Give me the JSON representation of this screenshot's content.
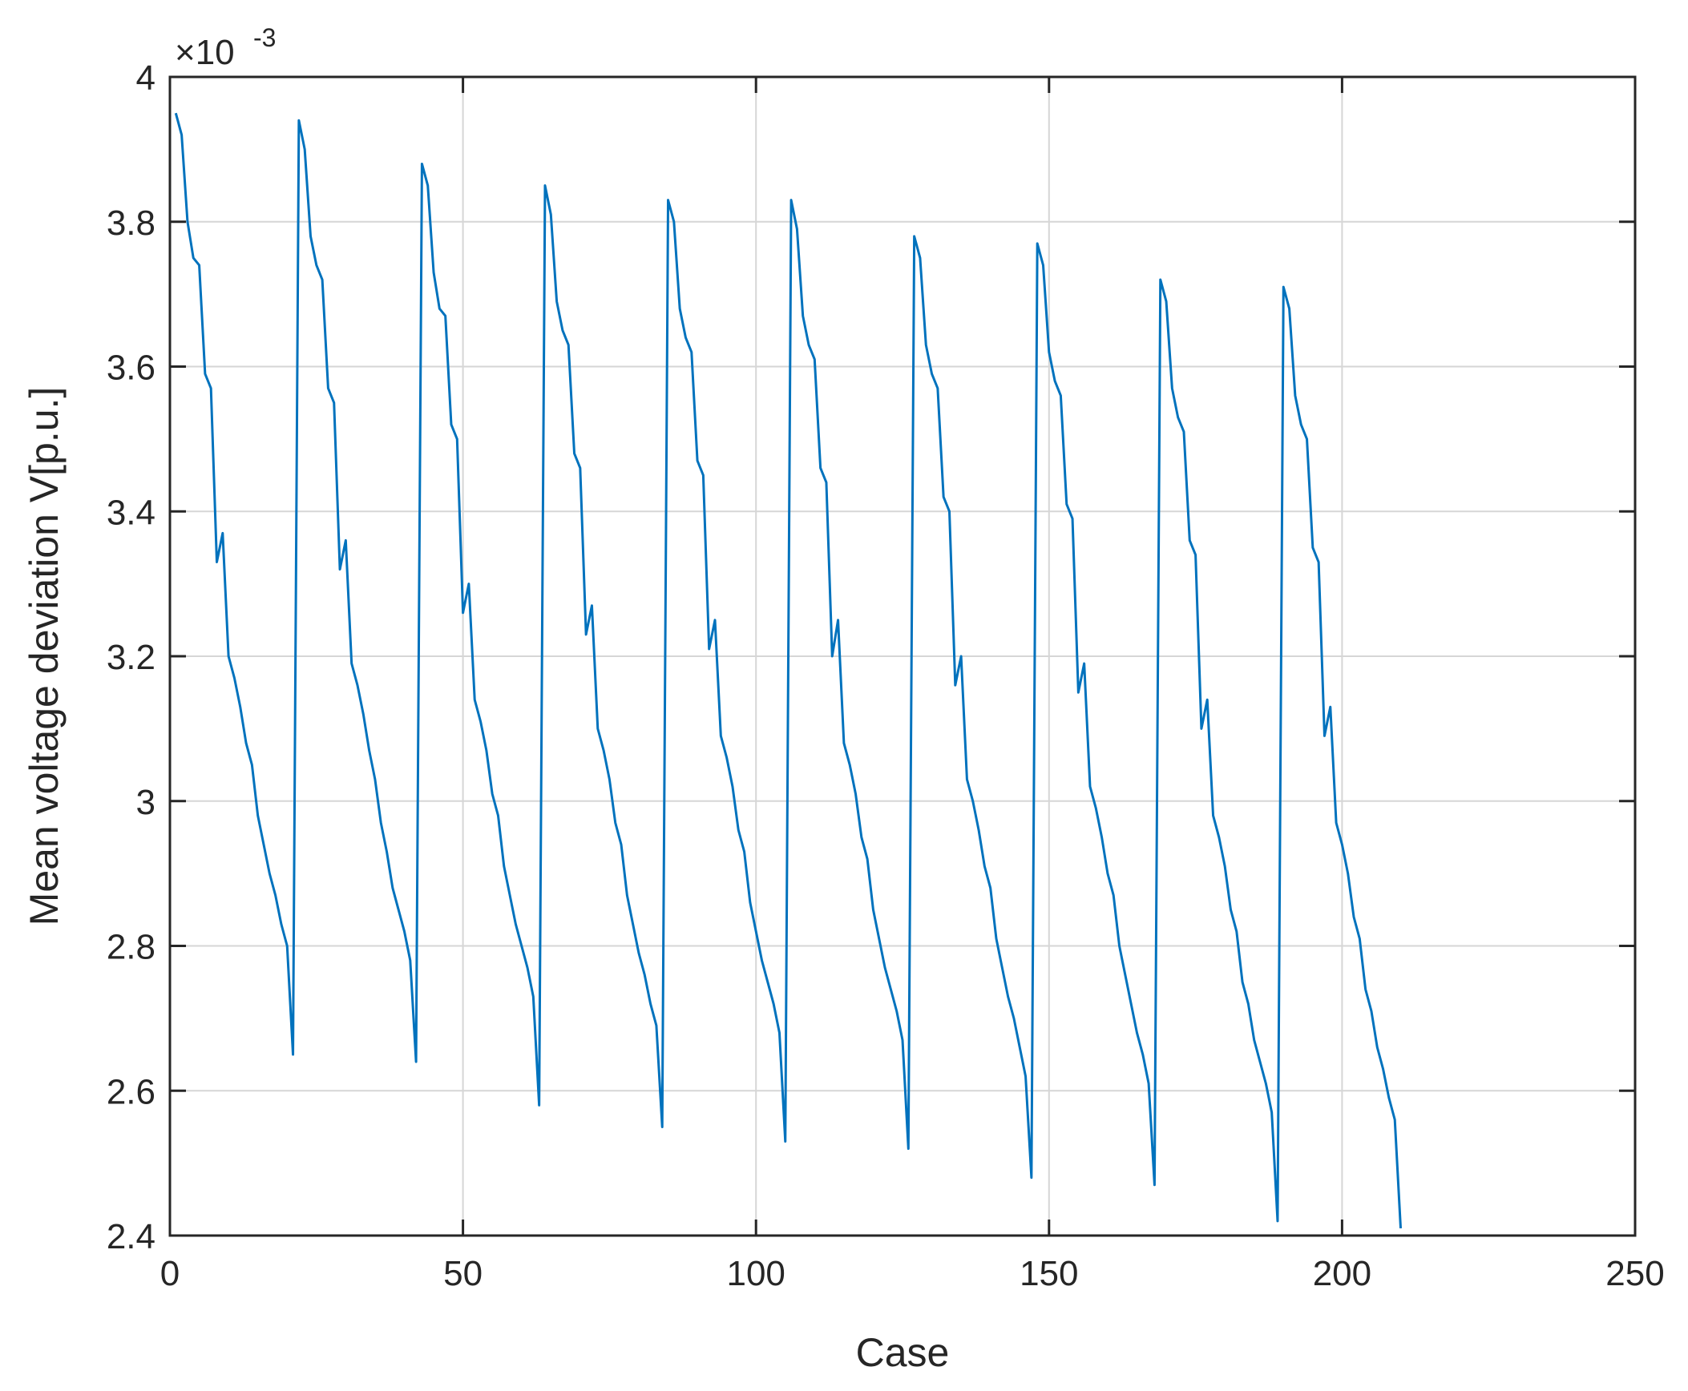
{
  "chart_data": {
    "type": "line",
    "xlabel": "Case",
    "ylabel": "Mean voltage deviation V[p.u.]",
    "y_exponent_base": "×10",
    "y_exponent_power": "-3",
    "xlim": [
      0,
      250
    ],
    "ylim": [
      2.4,
      4.0
    ],
    "xticks": [
      0,
      50,
      100,
      150,
      200,
      250
    ],
    "xtick_labels": [
      "0",
      "50",
      "100",
      "150",
      "200",
      "250"
    ],
    "yticks": [
      2.4,
      2.6,
      2.8,
      3.0,
      3.2,
      3.4,
      3.6,
      3.8,
      4.0
    ],
    "ytick_labels": [
      "2.4",
      "2.6",
      "2.8",
      "3",
      "3.2",
      "3.4",
      "3.6",
      "3.8",
      "4"
    ],
    "grid": true,
    "line_color": "#0072BD",
    "series": [
      {
        "x": [
          1,
          2,
          3,
          4,
          5,
          6,
          7,
          8,
          9,
          10,
          11,
          12,
          13,
          14,
          15,
          16,
          17,
          18,
          19,
          20,
          21,
          22,
          23,
          24,
          25,
          26,
          27,
          28,
          29,
          30,
          31,
          32,
          33,
          34,
          35,
          36,
          37,
          38,
          39,
          40,
          41,
          42,
          43,
          44,
          45,
          46,
          47,
          48,
          49,
          50,
          51,
          52,
          53,
          54,
          55,
          56,
          57,
          58,
          59,
          60,
          61,
          62,
          63,
          64,
          65,
          66,
          67,
          68,
          69,
          70,
          71,
          72,
          73,
          74,
          75,
          76,
          77,
          78,
          79,
          80,
          81,
          82,
          83,
          84,
          85,
          86,
          87,
          88,
          89,
          90,
          91,
          92,
          93,
          94,
          95,
          96,
          97,
          98,
          99,
          100,
          101,
          102,
          103,
          104,
          105,
          106,
          107,
          108,
          109,
          110,
          111,
          112,
          113,
          114,
          115,
          116,
          117,
          118,
          119,
          120,
          121,
          122,
          123,
          124,
          125,
          126,
          127,
          128,
          129,
          130,
          131,
          132,
          133,
          134,
          135,
          136,
          137,
          138,
          139,
          140,
          141,
          142,
          143,
          144,
          145,
          146,
          147,
          148,
          149,
          150,
          151,
          152,
          153,
          154,
          155,
          156,
          157,
          158,
          159,
          160,
          161,
          162,
          163,
          164,
          165,
          166,
          167,
          168,
          169,
          170,
          171,
          172,
          173,
          174,
          175,
          176,
          177,
          178,
          179,
          180,
          181,
          182,
          183,
          184,
          185,
          186,
          187,
          188,
          189,
          190,
          191,
          192,
          193,
          194,
          195,
          196,
          197,
          198,
          199,
          200,
          201,
          202,
          203,
          204,
          205,
          206,
          207,
          208,
          209,
          210
        ],
        "y": [
          3.95,
          3.92,
          3.8,
          3.75,
          3.74,
          3.59,
          3.57,
          3.33,
          3.37,
          3.2,
          3.17,
          3.13,
          3.08,
          3.05,
          2.98,
          2.94,
          2.9,
          2.87,
          2.83,
          2.8,
          2.65,
          3.94,
          3.9,
          3.78,
          3.74,
          3.72,
          3.57,
          3.55,
          3.32,
          3.36,
          3.19,
          3.16,
          3.12,
          3.07,
          3.03,
          2.97,
          2.93,
          2.88,
          2.85,
          2.82,
          2.78,
          2.64,
          3.88,
          3.85,
          3.73,
          3.68,
          3.67,
          3.52,
          3.5,
          3.26,
          3.3,
          3.14,
          3.11,
          3.07,
          3.01,
          2.98,
          2.91,
          2.87,
          2.83,
          2.8,
          2.77,
          2.73,
          2.58,
          3.85,
          3.81,
          3.69,
          3.65,
          3.63,
          3.48,
          3.46,
          3.23,
          3.27,
          3.1,
          3.07,
          3.03,
          2.97,
          2.94,
          2.87,
          2.83,
          2.79,
          2.76,
          2.72,
          2.69,
          2.55,
          3.83,
          3.8,
          3.68,
          3.64,
          3.62,
          3.47,
          3.45,
          3.21,
          3.25,
          3.09,
          3.06,
          3.02,
          2.96,
          2.93,
          2.86,
          2.82,
          2.78,
          2.75,
          2.72,
          2.68,
          2.53,
          3.83,
          3.79,
          3.67,
          3.63,
          3.61,
          3.46,
          3.44,
          3.2,
          3.25,
          3.08,
          3.05,
          3.01,
          2.95,
          2.92,
          2.85,
          2.81,
          2.77,
          2.74,
          2.71,
          2.67,
          2.52,
          3.78,
          3.75,
          3.63,
          3.59,
          3.57,
          3.42,
          3.4,
          3.16,
          3.2,
          3.03,
          3.0,
          2.96,
          2.91,
          2.88,
          2.81,
          2.77,
          2.73,
          2.7,
          2.66,
          2.62,
          2.48,
          3.77,
          3.74,
          3.62,
          3.58,
          3.56,
          3.41,
          3.39,
          3.15,
          3.19,
          3.02,
          2.99,
          2.95,
          2.9,
          2.87,
          2.8,
          2.76,
          2.72,
          2.68,
          2.65,
          2.61,
          2.47,
          3.72,
          3.69,
          3.57,
          3.53,
          3.51,
          3.36,
          3.34,
          3.1,
          3.14,
          2.98,
          2.95,
          2.91,
          2.85,
          2.82,
          2.75,
          2.72,
          2.67,
          2.64,
          2.61,
          2.57,
          2.42,
          3.71,
          3.68,
          3.56,
          3.52,
          3.5,
          3.35,
          3.33,
          3.09,
          3.13,
          2.97,
          2.94,
          2.9,
          2.84,
          2.81,
          2.74,
          2.71,
          2.66,
          2.63,
          2.59,
          2.56,
          2.41
        ]
      }
    ]
  }
}
